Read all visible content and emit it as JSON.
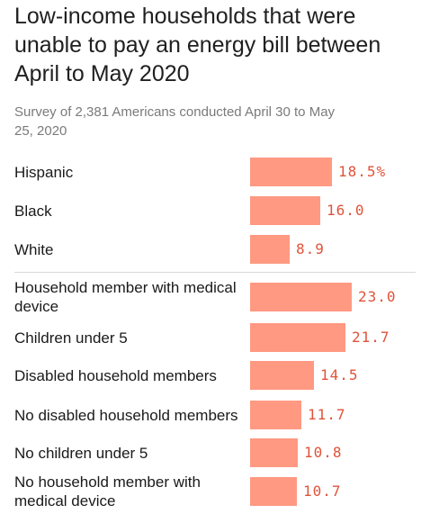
{
  "chart_data": {
    "type": "bar",
    "orientation": "horizontal",
    "title": "Low-income households that were unable to pay an energy bill between April to May 2020",
    "subtitle": "Survey of 2,381 Americans conducted April 30 to May 25, 2020",
    "bar_color": "#ff9982",
    "label_color": "#e0533a",
    "groups": [
      {
        "categories": [
          "Hispanic",
          "Black",
          "White"
        ],
        "values": [
          18.5,
          16.0,
          8.9
        ],
        "value_labels": [
          "18.5%",
          "16.0",
          "8.9"
        ]
      },
      {
        "categories": [
          "Household member with medical device",
          "Children under 5",
          "Disabled household members",
          "No disabled household members",
          "No children under 5",
          "No household member with medical device"
        ],
        "values": [
          23.0,
          21.7,
          14.5,
          11.7,
          10.8,
          10.7
        ],
        "value_labels": [
          "23.0",
          "21.7",
          "14.5",
          "11.7",
          "10.8",
          "10.7"
        ]
      }
    ]
  }
}
